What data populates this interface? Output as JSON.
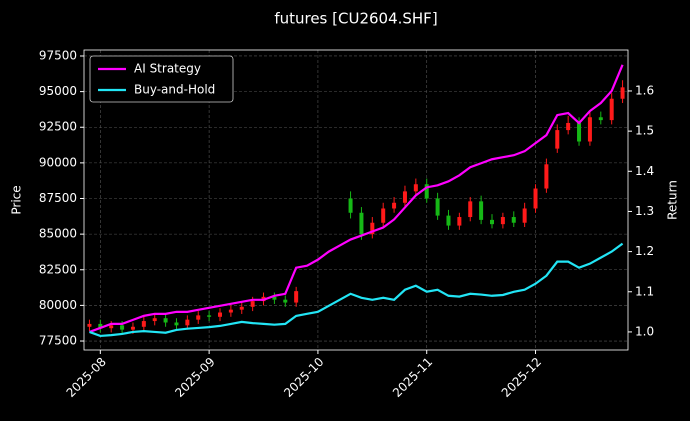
{
  "chart_data": {
    "type": "candlestick",
    "title": "futures [CU2604.SHF]",
    "ylabel": "Price",
    "y2label": "Return",
    "categories": [
      null,
      "2025-08",
      null,
      null,
      null,
      null,
      null,
      null,
      null,
      null,
      null,
      "2025-09",
      null,
      null,
      null,
      null,
      null,
      null,
      null,
      null,
      null,
      "2025-10",
      null,
      null,
      null,
      null,
      null,
      null,
      null,
      null,
      null,
      "2025-11",
      null,
      null,
      null,
      null,
      null,
      null,
      null,
      null,
      null,
      "2025-12",
      null,
      null,
      null,
      null,
      null,
      null,
      null,
      null
    ],
    "open": [
      78500,
      78700,
      78400,
      78600,
      78300,
      78500,
      78900,
      79100,
      78800,
      78600,
      79000,
      79300,
      79200,
      79500,
      79700,
      79900,
      80300,
      80600,
      80400,
      80200,
      null,
      null,
      null,
      null,
      87500,
      86500,
      85000,
      85800,
      86800,
      87200,
      88000,
      88500,
      87500,
      86300,
      85600,
      86200,
      87300,
      86000,
      85700,
      86200,
      85800,
      86800,
      88200,
      91000,
      92300,
      92800,
      91500,
      93200,
      93000,
      94500
    ],
    "high": [
      79000,
      79000,
      78900,
      78900,
      78800,
      79200,
      79400,
      79400,
      79100,
      79300,
      79600,
      79600,
      79800,
      80000,
      80200,
      80600,
      80900,
      80900,
      80700,
      81300,
      null,
      null,
      null,
      null,
      88000,
      86900,
      86200,
      87200,
      87600,
      88400,
      88900,
      88900,
      87900,
      86700,
      86500,
      87600,
      87700,
      86400,
      86500,
      86600,
      87200,
      88500,
      90300,
      92700,
      93300,
      93200,
      93600,
      93600,
      94900,
      95800
    ],
    "low": [
      78200,
      78100,
      78100,
      78000,
      78000,
      78200,
      78600,
      78500,
      78300,
      78300,
      78700,
      78900,
      78900,
      79200,
      79400,
      79600,
      80000,
      80100,
      79900,
      79900,
      null,
      null,
      null,
      null,
      86100,
      84600,
      84700,
      85500,
      86500,
      86900,
      87700,
      87200,
      86000,
      85300,
      85300,
      85900,
      85700,
      85400,
      85400,
      85500,
      85500,
      86500,
      87900,
      90700,
      92000,
      91200,
      91200,
      92700,
      92700,
      94200
    ],
    "close": [
      78700,
      78400,
      78600,
      78300,
      78500,
      78900,
      79100,
      78800,
      78600,
      79000,
      79300,
      79200,
      79500,
      79700,
      79900,
      80300,
      80600,
      80400,
      80200,
      81000,
      null,
      null,
      null,
      null,
      86500,
      85000,
      85800,
      86800,
      87200,
      88000,
      88500,
      87500,
      86300,
      85600,
      86200,
      87300,
      86000,
      85700,
      86200,
      85800,
      86800,
      88200,
      89900,
      92300,
      92800,
      91500,
      93200,
      93000,
      94500,
      95300
    ],
    "up_color": "#ff1a1a",
    "down_color": "#16b816",
    "series": [
      {
        "name": "AI Strategy",
        "color": "#ff00ff",
        "axis": "y2",
        "values": [
          1.0,
          1.01,
          1.02,
          1.02,
          1.03,
          1.04,
          1.045,
          1.045,
          1.05,
          1.05,
          1.055,
          1.06,
          1.065,
          1.07,
          1.075,
          1.08,
          1.08,
          1.09,
          1.095,
          1.16,
          1.165,
          1.18,
          1.2,
          1.215,
          1.23,
          1.24,
          1.25,
          1.26,
          1.28,
          1.31,
          1.34,
          1.36,
          1.365,
          1.375,
          1.39,
          1.41,
          1.42,
          1.43,
          1.435,
          1.44,
          1.45,
          1.47,
          1.49,
          1.54,
          1.545,
          1.52,
          1.55,
          1.57,
          1.6,
          1.665
        ]
      },
      {
        "name": "Buy-and-Hold",
        "color": "#22e5f5",
        "axis": "y2",
        "values": [
          1.0,
          0.99,
          0.992,
          0.995,
          1.0,
          1.002,
          1.0,
          0.998,
          1.005,
          1.008,
          1.01,
          1.012,
          1.015,
          1.02,
          1.025,
          1.022,
          1.02,
          1.018,
          1.02,
          1.04,
          1.045,
          1.05,
          1.065,
          1.08,
          1.095,
          1.085,
          1.08,
          1.085,
          1.08,
          1.105,
          1.115,
          1.1,
          1.105,
          1.09,
          1.088,
          1.095,
          1.093,
          1.09,
          1.092,
          1.1,
          1.105,
          1.12,
          1.14,
          1.175,
          1.175,
          1.16,
          1.17,
          1.185,
          1.2,
          1.22
        ]
      }
    ],
    "ylim": [
      76870,
      97920
    ],
    "yticks": [
      77500,
      80000,
      82500,
      85000,
      87500,
      90000,
      92500,
      95000,
      97500
    ],
    "y2lim": [
      0.955,
      1.702
    ],
    "y2ticks": [
      {
        "value": 1,
        "label": "1.0"
      },
      1.1,
      1.2,
      1.3,
      1.4,
      1.5,
      1.6
    ],
    "grid": true,
    "legend": "upper left"
  }
}
